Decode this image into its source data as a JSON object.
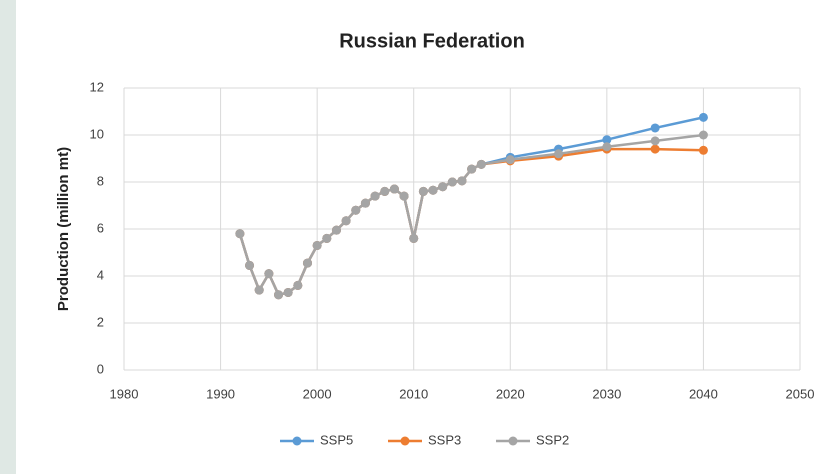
{
  "chart_data": {
    "type": "line",
    "title": "Russian Federation",
    "y_label": "Production (million mt)",
    "x": [
      1992,
      1993,
      1994,
      1995,
      1996,
      1997,
      1998,
      1999,
      2000,
      2001,
      2002,
      2003,
      2004,
      2005,
      2006,
      2007,
      2008,
      2009,
      2010,
      2011,
      2012,
      2013,
      2014,
      2015,
      2016,
      2017,
      2020,
      2025,
      2030,
      2035,
      2040
    ],
    "series": [
      {
        "name": "SSP5",
        "color": "#5b9bd5",
        "values": [
          5.8,
          4.45,
          3.4,
          4.1,
          3.2,
          3.3,
          3.6,
          4.55,
          5.3,
          5.6,
          5.95,
          6.35,
          6.8,
          7.1,
          7.4,
          7.6,
          7.7,
          7.4,
          5.6,
          7.6,
          7.65,
          7.8,
          8.0,
          8.05,
          8.55,
          8.75,
          9.05,
          9.4,
          9.8,
          10.3,
          10.75
        ]
      },
      {
        "name": "SSP3",
        "color": "#ed7d31",
        "values": [
          5.8,
          4.45,
          3.4,
          4.1,
          3.2,
          3.3,
          3.6,
          4.55,
          5.3,
          5.6,
          5.95,
          6.35,
          6.8,
          7.1,
          7.4,
          7.6,
          7.7,
          7.4,
          5.6,
          7.6,
          7.65,
          7.8,
          8.0,
          8.05,
          8.55,
          8.75,
          8.9,
          9.1,
          9.4,
          9.4,
          9.35
        ]
      },
      {
        "name": "SSP2",
        "color": "#a5a5a5",
        "values": [
          5.8,
          4.45,
          3.4,
          4.1,
          3.2,
          3.3,
          3.6,
          4.55,
          5.3,
          5.6,
          5.95,
          6.35,
          6.8,
          7.1,
          7.4,
          7.6,
          7.7,
          7.4,
          5.6,
          7.6,
          7.65,
          7.8,
          8.0,
          8.05,
          8.55,
          8.75,
          8.95,
          9.2,
          9.5,
          9.75,
          10.0
        ]
      }
    ],
    "xlim": [
      1980,
      2050
    ],
    "xticks": [
      1980,
      1990,
      2000,
      2010,
      2020,
      2030,
      2040,
      2050
    ],
    "ylim": [
      0,
      12
    ],
    "yticks": [
      0,
      2,
      4,
      6,
      8,
      10,
      12
    ],
    "grid": true,
    "legend": "bottom"
  }
}
